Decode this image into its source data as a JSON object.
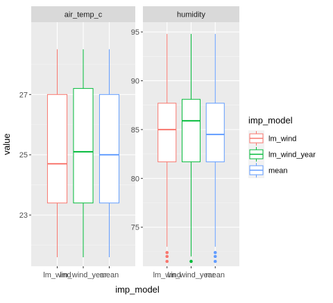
{
  "chart_data": {
    "type": "boxplot",
    "xlabel": "imp_model",
    "ylabel": "value",
    "categories": [
      "lm_wind",
      "lm_wind_year",
      "mean"
    ],
    "legend": {
      "title": "imp_model",
      "placement": "right",
      "entries": [
        "lm_wind",
        "lm_wind_year",
        "mean"
      ]
    },
    "colors": {
      "lm_wind": "#F8766D",
      "lm_wind_year": "#00BA38",
      "mean": "#619CFF"
    },
    "grid": true,
    "panels": [
      {
        "strip": "air_temp_c",
        "ylim": [
          21.3,
          29.4
        ],
        "yticks": [
          23,
          25,
          27
        ],
        "boxes": [
          {
            "category": "lm_wind",
            "whisker_low": 21.6,
            "q1": 23.4,
            "median": 24.7,
            "q3": 27.0,
            "whisker_high": 28.5,
            "outliers": []
          },
          {
            "category": "lm_wind_year",
            "whisker_low": 21.6,
            "q1": 23.4,
            "median": 25.1,
            "q3": 27.2,
            "whisker_high": 28.5,
            "outliers": []
          },
          {
            "category": "mean",
            "whisker_low": 21.6,
            "q1": 23.4,
            "median": 25.0,
            "q3": 27.0,
            "whisker_high": 28.5,
            "outliers": []
          }
        ]
      },
      {
        "strip": "humidity",
        "ylim": [
          71.0,
          96.0
        ],
        "yticks": [
          75,
          80,
          85,
          90,
          95
        ],
        "boxes": [
          {
            "category": "lm_wind",
            "whisker_low": 73.0,
            "q1": 81.7,
            "median": 85.0,
            "q3": 87.7,
            "whisker_high": 94.8,
            "outliers": [
              72.4,
              72.0,
              71.5
            ]
          },
          {
            "category": "lm_wind_year",
            "whisker_low": 72.0,
            "q1": 81.7,
            "median": 85.9,
            "q3": 88.1,
            "whisker_high": 94.8,
            "outliers": [
              71.5
            ]
          },
          {
            "category": "mean",
            "whisker_low": 73.0,
            "q1": 81.7,
            "median": 84.5,
            "q3": 87.7,
            "whisker_high": 94.8,
            "outliers": [
              72.4,
              72.0,
              71.5
            ]
          }
        ]
      }
    ]
  }
}
